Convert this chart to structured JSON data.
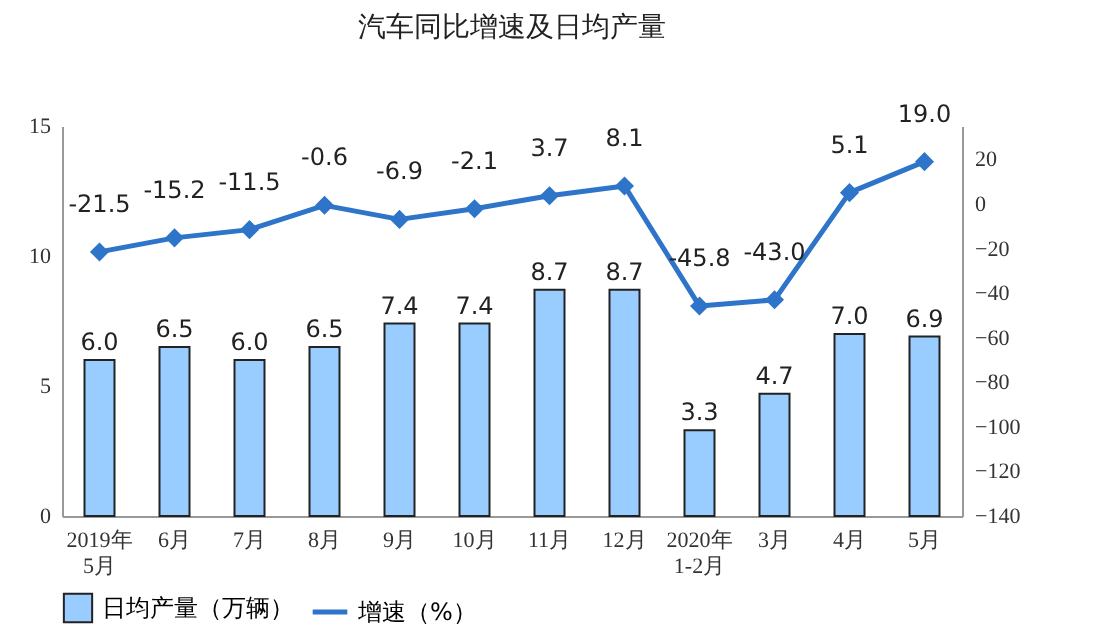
{
  "chart_data": {
    "type": "bar",
    "title": "汽车同比增速及日均产量",
    "categories": [
      "2019年\n5月",
      "6月",
      "7月",
      "8月",
      "9月",
      "10月",
      "11月",
      "12月",
      "2020年\n1-2月",
      "3月",
      "4月",
      "5月"
    ],
    "series": [
      {
        "name": "日均产量（万辆）",
        "color": "#99ccff",
        "values": [
          6.0,
          6.5,
          6.0,
          6.5,
          7.4,
          7.4,
          8.7,
          8.7,
          3.3,
          4.7,
          7.0,
          6.9
        ],
        "value_labels": [
          "6.0",
          "6.5",
          "6.0",
          "6.5",
          "7.4",
          "7.4",
          "8.7",
          "8.7",
          "3.3",
          "4.7",
          "7.0",
          "6.9"
        ]
      },
      {
        "name": "增速（%）",
        "type": "line",
        "axis": "y2",
        "color": "#2e75c9",
        "marker": "diamond",
        "values": [
          -21.5,
          -15.2,
          -11.5,
          -0.6,
          -6.9,
          -2.1,
          3.7,
          8.1,
          -45.8,
          -43.0,
          5.1,
          19.0
        ],
        "value_labels": [
          "-21.5",
          "-15.2",
          "-11.5",
          "-0.6",
          "-6.9",
          "-2.1",
          "3.7",
          "8.1",
          "-45.8",
          "-43.0",
          "5.1",
          "19.0"
        ]
      }
    ],
    "ylim": [
      0,
      15
    ],
    "yticks": [
      0,
      5,
      10,
      15
    ],
    "y2lim": [
      -140,
      35
    ],
    "y2ticks": [
      -140,
      -120,
      -100,
      -80,
      -60,
      -40,
      -20,
      0,
      20
    ],
    "legend": "bottom",
    "grid": false
  }
}
